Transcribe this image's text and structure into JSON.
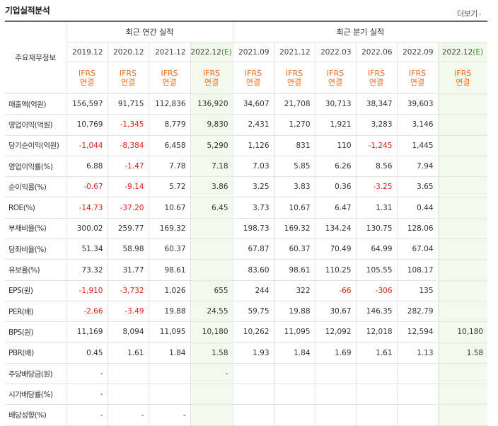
{
  "title": "기업실적분석",
  "more": {
    "label": "더보기",
    "icon": "chevron-right-icon"
  },
  "header": {
    "corner": "주요재무정보",
    "annual_group": "최근 연간 실적",
    "quarter_group": "최근 분기 실적"
  },
  "periods": [
    {
      "base": "2019.12",
      "est": ""
    },
    {
      "base": "2020.12",
      "est": ""
    },
    {
      "base": "2021.12",
      "est": ""
    },
    {
      "base": "2022.12",
      "est": "(E)"
    },
    {
      "base": "2021.09",
      "est": ""
    },
    {
      "base": "2021.12",
      "est": ""
    },
    {
      "base": "2022.03",
      "est": ""
    },
    {
      "base": "2022.06",
      "est": ""
    },
    {
      "base": "2022.09",
      "est": ""
    },
    {
      "base": "2022.12",
      "est": "(E)"
    }
  ],
  "ifrs": {
    "line1": "IFRS",
    "line2": "연결"
  },
  "rows": [
    {
      "label": "매출액(억원)",
      "values": [
        "156,597",
        "91,715",
        "112,836",
        "136,920",
        "34,607",
        "21,708",
        "30,713",
        "38,347",
        "39,603",
        ""
      ]
    },
    {
      "label": "영업이익(억원)",
      "values": [
        "10,769",
        "-1,345",
        "8,779",
        "9,830",
        "2,431",
        "1,270",
        "1,921",
        "3,283",
        "3,146",
        ""
      ]
    },
    {
      "label": "당기순이익(억원)",
      "values": [
        "-1,044",
        "-8,384",
        "6,458",
        "5,290",
        "1,126",
        "831",
        "110",
        "-1,245",
        "1,445",
        ""
      ]
    },
    {
      "label": "영업이익률(%)",
      "values": [
        "6.88",
        "-1.47",
        "7.78",
        "7.18",
        "7.03",
        "5.85",
        "6.26",
        "8.56",
        "7.94",
        ""
      ]
    },
    {
      "label": "순이익률(%)",
      "values": [
        "-0.67",
        "-9.14",
        "5.72",
        "3.86",
        "3.25",
        "3.83",
        "0.36",
        "-3.25",
        "3.65",
        ""
      ]
    },
    {
      "label": "ROE(%)",
      "values": [
        "-14.73",
        "-37.20",
        "10.67",
        "6.45",
        "3.73",
        "10.67",
        "6.47",
        "1.31",
        "0.44",
        ""
      ]
    },
    {
      "label": "부채비율(%)",
      "values": [
        "300.02",
        "259.77",
        "169.32",
        "",
        "198.73",
        "169.32",
        "134.24",
        "130.75",
        "128.06",
        ""
      ]
    },
    {
      "label": "당좌비율(%)",
      "values": [
        "51.34",
        "58.98",
        "60.37",
        "",
        "67.87",
        "60.37",
        "70.49",
        "64.99",
        "67.04",
        ""
      ]
    },
    {
      "label": "유보율(%)",
      "values": [
        "73.32",
        "31.77",
        "98.61",
        "",
        "83.60",
        "98.61",
        "110.25",
        "105.55",
        "108.17",
        ""
      ]
    },
    {
      "label": "EPS(원)",
      "values": [
        "-1,910",
        "-3,732",
        "1,026",
        "655",
        "244",
        "322",
        "-66",
        "-306",
        "135",
        ""
      ]
    },
    {
      "label": "PER(배)",
      "values": [
        "-2.66",
        "-3.49",
        "19.88",
        "24.55",
        "59.75",
        "19.88",
        "30.67",
        "146.35",
        "282.79",
        ""
      ]
    },
    {
      "label": "BPS(원)",
      "values": [
        "11,169",
        "8,094",
        "11,095",
        "10,180",
        "10,262",
        "11,095",
        "12,092",
        "12,018",
        "12,594",
        "10,180"
      ]
    },
    {
      "label": "PBR(배)",
      "values": [
        "0.45",
        "1.61",
        "1.84",
        "1.58",
        "1.93",
        "1.84",
        "1.69",
        "1.61",
        "1.13",
        "1.58"
      ]
    },
    {
      "label": "주당배당금(원)",
      "values": [
        "-",
        "",
        "",
        "-",
        "",
        "",
        "",
        "",
        "",
        ""
      ]
    },
    {
      "label": "시가배당률(%)",
      "values": [
        "-",
        "",
        "",
        "",
        "",
        "",
        "",
        "",
        "",
        ""
      ]
    },
    {
      "label": "배당성향(%)",
      "values": [
        "-",
        "-",
        "-",
        "",
        "",
        "",
        "",
        "",
        "",
        ""
      ]
    }
  ],
  "colors": {
    "negative": "#e8201b",
    "ifrs": "#ef6c1a",
    "estimate": "#2f8f2f",
    "estimate_bg": "#f3f9ec"
  }
}
